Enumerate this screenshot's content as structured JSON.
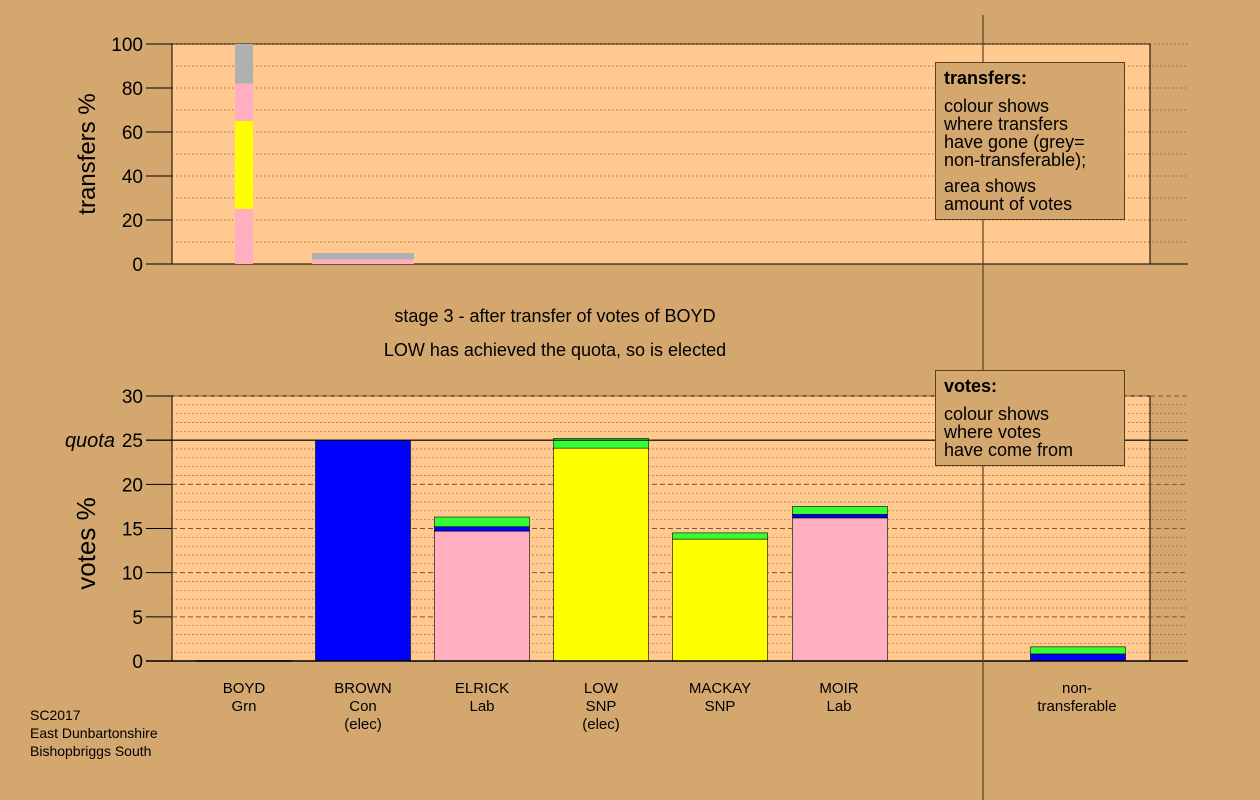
{
  "title": {
    "line1": "stage 3 - after transfer of votes of BOYD",
    "line2": "LOW has achieved the quota, so is elected"
  },
  "info": {
    "line1": "SC2017",
    "line2": "East Dunbartonshire",
    "line3": "Bishopbriggs South"
  },
  "legend_transfers": {
    "title": "transfers:",
    "para1": [
      "colour shows",
      "where transfers",
      "have gone (grey=",
      "non-transferable);"
    ],
    "para2": [
      "area shows",
      "amount of votes"
    ]
  },
  "legend_votes": {
    "title": "votes:",
    "para1": [
      "colour shows",
      "where votes",
      "have come from"
    ]
  },
  "colors": {
    "background": "#d4a76f",
    "plot": "#ffc98f",
    "Grn": "#33ff33",
    "Con": "#0000ff",
    "Lab": "#ffafc0",
    "SNP": "#ffff00",
    "nontransferable": "#b0b0b0"
  },
  "candidates": [
    {
      "name": "BOYD",
      "party": "Grn",
      "note": ""
    },
    {
      "name": "BROWN",
      "party": "Con",
      "note": "(elec)"
    },
    {
      "name": "ELRICK",
      "party": "Lab",
      "note": ""
    },
    {
      "name": "LOW",
      "party": "SNP",
      "note": "(elec)"
    },
    {
      "name": "MACKAY",
      "party": "SNP",
      "note": ""
    },
    {
      "name": "MOIR",
      "party": "Lab",
      "note": ""
    }
  ],
  "nontransferable_label": [
    "non-",
    "transferable"
  ],
  "chart_data": [
    {
      "type": "bar",
      "ylabel": "transfers %",
      "ylim": [
        0,
        100
      ],
      "yticks": [
        0,
        20,
        40,
        60,
        80,
        100
      ],
      "grid": true,
      "bars": [
        {
          "category": "BOYD",
          "segments": [
            {
              "party": "Lab",
              "value": 25
            },
            {
              "party": "SNP",
              "value": 40
            },
            {
              "party": "Lab",
              "value": 17
            },
            {
              "party": "nontransferable",
              "value": 18
            }
          ]
        },
        {
          "category": "BROWN",
          "segments": [
            {
              "party": "Lab",
              "value": 2
            },
            {
              "party": "nontransferable",
              "value": 3
            }
          ]
        }
      ]
    },
    {
      "type": "bar",
      "ylabel": "votes %",
      "ylim": [
        0,
        30
      ],
      "yticks": [
        0,
        5,
        10,
        15,
        20,
        25,
        30
      ],
      "quota": 25,
      "quota_label": "quota",
      "grid": true,
      "categories": [
        "BOYD",
        "BROWN",
        "ELRICK",
        "LOW",
        "MACKAY",
        "MOIR",
        "non-transferable"
      ],
      "bars": [
        {
          "category": "BOYD",
          "segments": []
        },
        {
          "category": "BROWN",
          "segments": [
            {
              "party": "Con",
              "value": 25.0
            }
          ]
        },
        {
          "category": "ELRICK",
          "segments": [
            {
              "party": "Lab",
              "value": 14.7
            },
            {
              "party": "Con",
              "value": 0.5
            },
            {
              "party": "Grn",
              "value": 1.1
            }
          ]
        },
        {
          "category": "LOW",
          "segments": [
            {
              "party": "SNP",
              "value": 24.1
            },
            {
              "party": "Grn",
              "value": 1.1
            }
          ]
        },
        {
          "category": "MACKAY",
          "segments": [
            {
              "party": "SNP",
              "value": 13.8
            },
            {
              "party": "Grn",
              "value": 0.7
            }
          ]
        },
        {
          "category": "MOIR",
          "segments": [
            {
              "party": "Lab",
              "value": 16.2
            },
            {
              "party": "Con",
              "value": 0.4
            },
            {
              "party": "Grn",
              "value": 0.9
            }
          ]
        },
        {
          "category": "non-transferable",
          "segments": [
            {
              "party": "Con",
              "value": 0.8
            },
            {
              "party": "Grn",
              "value": 0.8
            }
          ]
        }
      ]
    }
  ]
}
